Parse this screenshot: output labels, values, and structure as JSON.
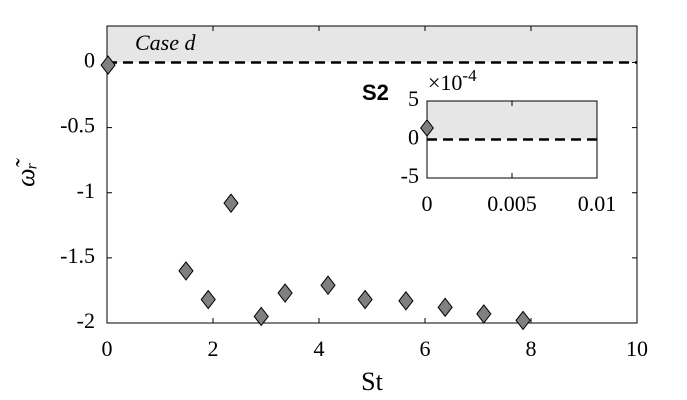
{
  "chart_data": [
    {
      "type": "scatter",
      "xlabel": "St",
      "ylabel": "ω̃ᵣ",
      "x": [
        0.02,
        1.49,
        1.91,
        2.34,
        2.91,
        3.36,
        4.17,
        4.87,
        5.64,
        6.38,
        7.11,
        7.85
      ],
      "values": [
        -0.02,
        -1.6,
        -1.82,
        -1.08,
        -1.95,
        -1.77,
        -1.71,
        -1.82,
        -1.83,
        -1.88,
        -1.93,
        -1.98
      ],
      "color": "#808080",
      "xlim": [
        0,
        10
      ],
      "ylim": [
        -2,
        0.28
      ],
      "xticks": [
        0,
        2,
        4,
        6,
        8,
        10
      ],
      "yticks": [
        -2,
        -1.5,
        -1,
        -0.5,
        0
      ],
      "shade_above": 0,
      "shade_color": "#e6e6e6",
      "reference_line": 0,
      "annotations": [
        "Case d"
      ]
    },
    {
      "type": "scatter",
      "x": [
        0
      ],
      "values": [
        1.5
      ],
      "color": "#808080",
      "xlim": [
        0,
        0.01
      ],
      "ylim": [
        -5,
        5
      ],
      "xticks": [
        0,
        0.005,
        0.01
      ],
      "yticks": [
        -5,
        0,
        5
      ],
      "y_scale_base": "×10",
      "y_scale_power": "-4",
      "shade_above": 0,
      "shade_color": "#e6e6e6",
      "reference_line": 0,
      "annotations": [
        "S2"
      ]
    }
  ]
}
